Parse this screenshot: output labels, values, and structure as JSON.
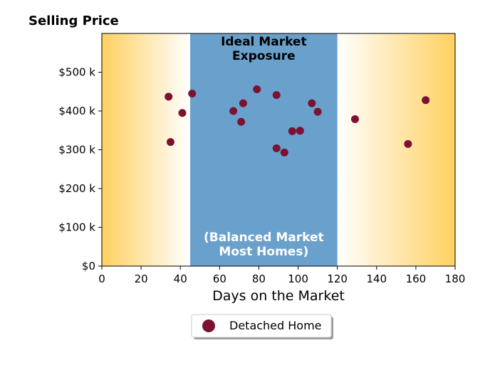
{
  "chart_data": {
    "type": "scatter",
    "title": "Selling Price",
    "xlabel": "Days on the Market",
    "ylabel": "",
    "xlim": [
      0,
      180
    ],
    "ylim": [
      0,
      600000
    ],
    "xticks": [
      0,
      20,
      40,
      60,
      80,
      100,
      120,
      140,
      160,
      180
    ],
    "xtick_labels": [
      "0",
      "20",
      "40",
      "60",
      "80",
      "100",
      "120",
      "140",
      "160",
      "180"
    ],
    "yticks": [
      0,
      100000,
      200000,
      300000,
      400000,
      500000
    ],
    "ytick_labels": [
      "$0",
      "$100 k",
      "$200 k",
      "$300 k",
      "$400 k",
      "$500 k"
    ],
    "grid": false,
    "legend_position": "below",
    "zone": {
      "x_range": [
        45,
        120
      ],
      "color": "#6aa0cc",
      "top_label": [
        "Ideal Market",
        "Exposure"
      ],
      "bottom_label": [
        "(Balanced Market",
        "Most Homes)"
      ]
    },
    "gradient_color": "#ffd060",
    "series": [
      {
        "name": "Detached Home",
        "color": "#7a1232",
        "points": [
          {
            "x": 34,
            "y": 437000
          },
          {
            "x": 35,
            "y": 320000
          },
          {
            "x": 41,
            "y": 395000
          },
          {
            "x": 46,
            "y": 445000
          },
          {
            "x": 67,
            "y": 400000
          },
          {
            "x": 71,
            "y": 372000
          },
          {
            "x": 72,
            "y": 420000
          },
          {
            "x": 79,
            "y": 456000
          },
          {
            "x": 89,
            "y": 441000
          },
          {
            "x": 89,
            "y": 304000
          },
          {
            "x": 93,
            "y": 293000
          },
          {
            "x": 97,
            "y": 348000
          },
          {
            "x": 101,
            "y": 349000
          },
          {
            "x": 107,
            "y": 420000
          },
          {
            "x": 110,
            "y": 398000
          },
          {
            "x": 129,
            "y": 379000
          },
          {
            "x": 156,
            "y": 315000
          },
          {
            "x": 165,
            "y": 428000
          }
        ]
      }
    ]
  }
}
